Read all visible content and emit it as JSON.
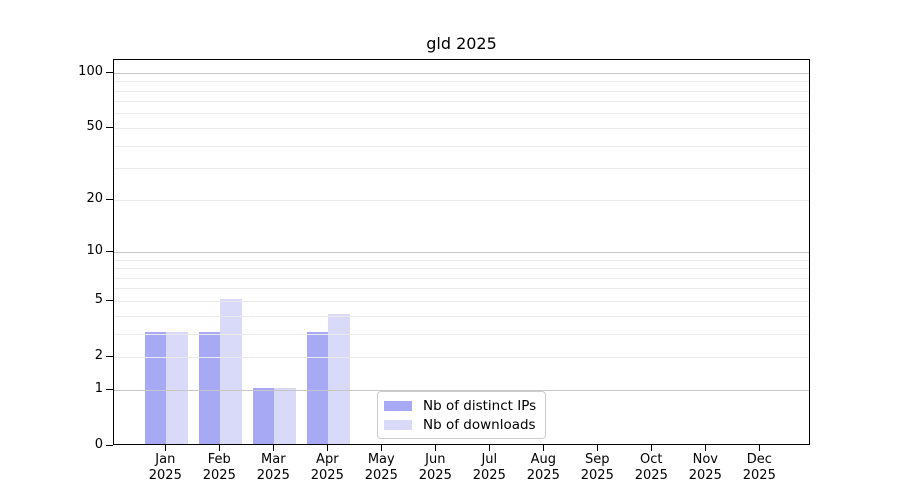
{
  "chart_data": {
    "type": "bar",
    "title": "gld 2025",
    "categories": [
      "Jan",
      "Feb",
      "Mar",
      "Apr",
      "May",
      "Jun",
      "Jul",
      "Aug",
      "Sep",
      "Oct",
      "Nov",
      "Dec"
    ],
    "x_tick_second_line": "2025",
    "series": [
      {
        "name": "Nb of distinct IPs",
        "color": "#a8a9f5",
        "values": [
          3,
          3,
          1,
          3,
          0,
          0,
          0,
          0,
          0,
          0,
          0,
          0
        ]
      },
      {
        "name": "Nb of downloads",
        "color": "#d9dafa",
        "values": [
          3,
          5,
          1,
          4,
          0,
          0,
          0,
          0,
          0,
          0,
          0,
          0
        ]
      }
    ],
    "xlabel": "",
    "ylabel": "",
    "yscale": "log1p",
    "ylim": [
      0,
      118
    ],
    "y_tick_values": [
      0,
      1,
      2,
      5,
      10,
      20,
      50,
      100
    ],
    "y_tick_labels": [
      "0",
      "1",
      "2",
      "5",
      "10",
      "20",
      "50",
      "100"
    ],
    "gridlines": {
      "major_values": [
        1,
        10,
        100
      ],
      "minor_values": [
        2,
        3,
        4,
        5,
        6,
        7,
        8,
        9,
        20,
        30,
        40,
        50,
        60,
        70,
        80,
        90
      ],
      "major_color": "#c6c6c6",
      "minor_color": "#eaeaea"
    },
    "legend": {
      "position": "lower-center",
      "entries": [
        "Nb of distinct IPs",
        "Nb of downloads"
      ]
    },
    "axis_color": "#000000",
    "background_color": "#ffffff"
  }
}
